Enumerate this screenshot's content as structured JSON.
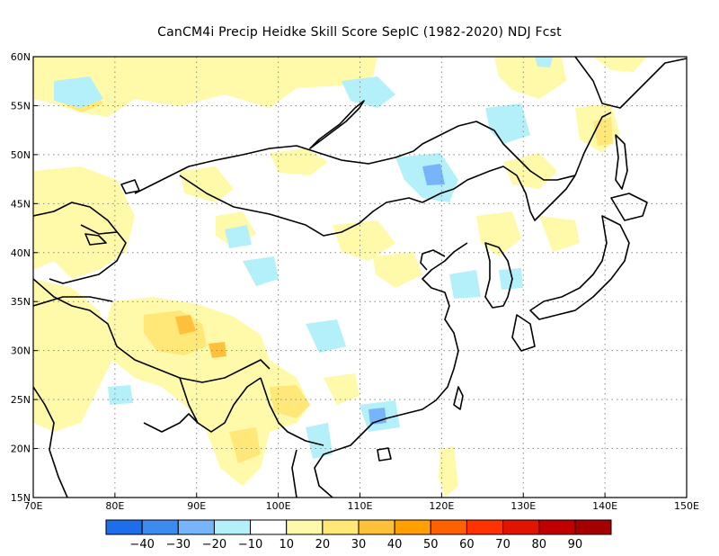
{
  "title": "CanCM4i Precip Heidke Skill Score SepIC (1982-2020) NDJ Fcst",
  "map": {
    "lon_range": [
      70,
      150
    ],
    "lat_range": [
      15,
      60
    ],
    "lon_ticks": [
      {
        "value": 70,
        "label": "70E"
      },
      {
        "value": 80,
        "label": "80E"
      },
      {
        "value": 90,
        "label": "90E"
      },
      {
        "value": 100,
        "label": "100E"
      },
      {
        "value": 110,
        "label": "110E"
      },
      {
        "value": 120,
        "label": "120E"
      },
      {
        "value": 130,
        "label": "130E"
      },
      {
        "value": 140,
        "label": "140E"
      },
      {
        "value": 150,
        "label": "150E"
      }
    ],
    "lat_ticks": [
      {
        "value": 15,
        "label": "15N"
      },
      {
        "value": 20,
        "label": "20N"
      },
      {
        "value": 25,
        "label": "25N"
      },
      {
        "value": 30,
        "label": "30N"
      },
      {
        "value": 35,
        "label": "35N"
      },
      {
        "value": 40,
        "label": "40N"
      },
      {
        "value": 45,
        "label": "45N"
      },
      {
        "value": 50,
        "label": "50N"
      },
      {
        "value": 55,
        "label": "55N"
      },
      {
        "value": 60,
        "label": "60N"
      }
    ],
    "gridlines": "dotted"
  },
  "colorbar": {
    "levels": [
      -40,
      -30,
      -20,
      -10,
      10,
      20,
      30,
      40,
      50,
      60,
      70,
      80,
      90
    ],
    "labels": [
      "-40",
      "-30",
      "-20",
      "-10",
      "10",
      "20",
      "30",
      "40",
      "50",
      "60",
      "70",
      "80",
      "90"
    ],
    "colors": [
      "#1e6eeb",
      "#3c8cf0",
      "#78b4fa",
      "#b4f0fa",
      "#ffffff",
      "#fffaaa",
      "#ffe878",
      "#ffc03c",
      "#ffa000",
      "#ff6000",
      "#ff3200",
      "#e11400",
      "#c00000",
      "#a50000"
    ]
  },
  "fields": {
    "yellow_1": "#fffaaa",
    "yellow_2": "#ffe878",
    "orange_3": "#ffc03c",
    "cyan_1": "#b4f0fa",
    "blue_2": "#78b4fa"
  }
}
